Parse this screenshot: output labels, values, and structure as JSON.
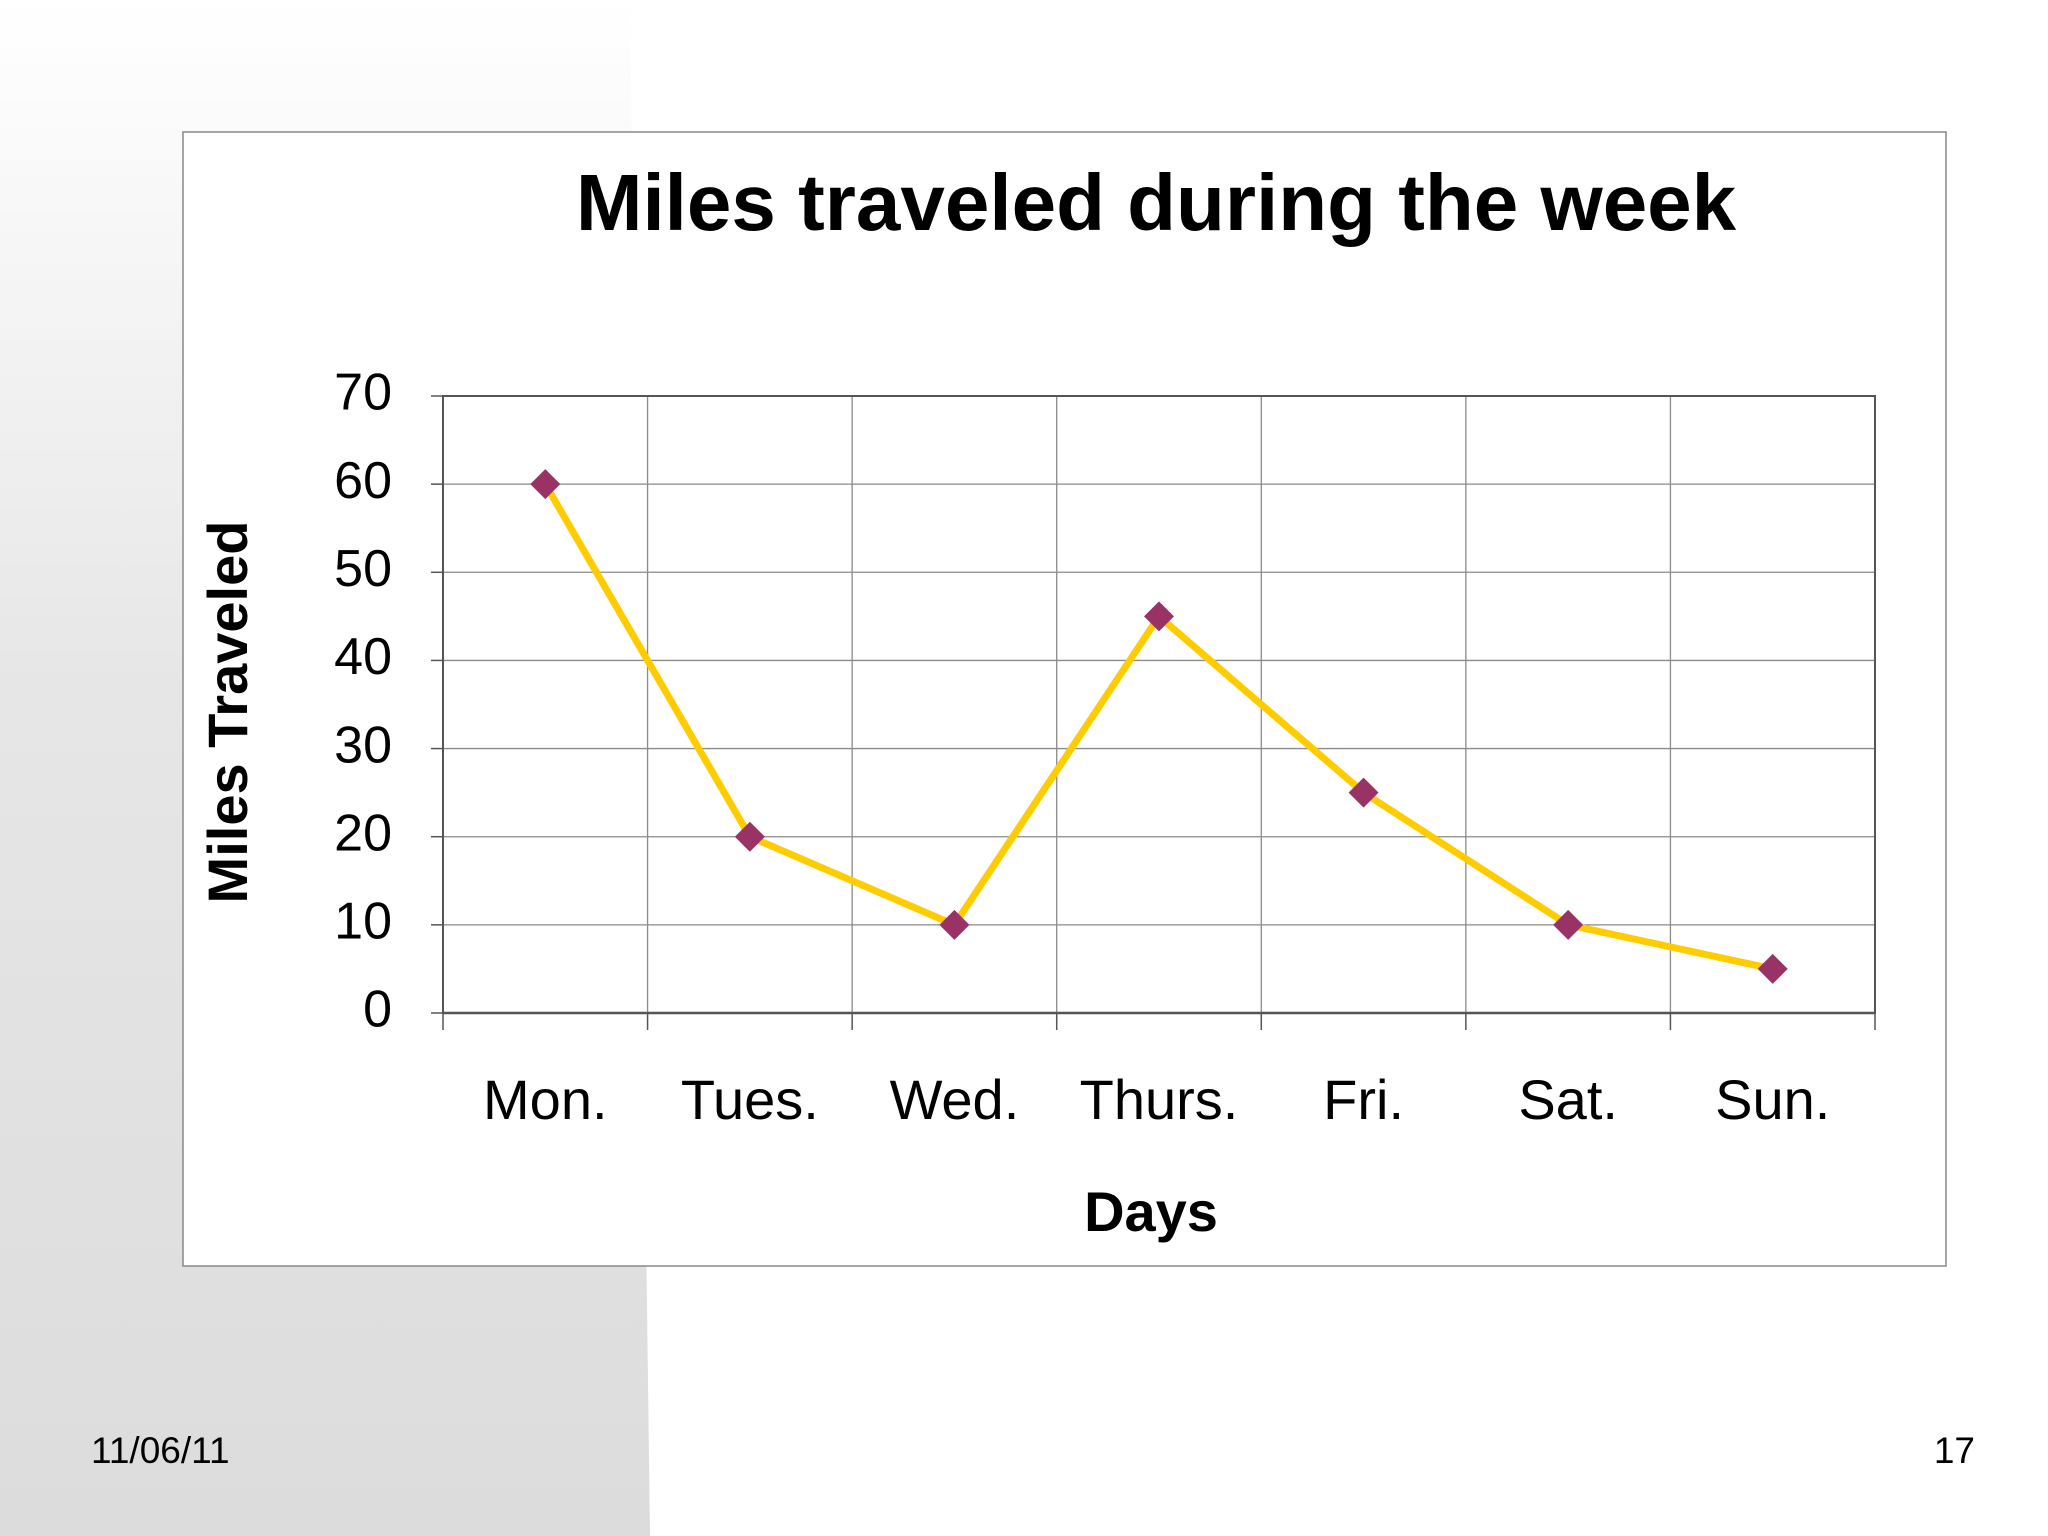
{
  "chart_data": {
    "type": "line",
    "title": "Miles traveled during the week",
    "x_label": "Days",
    "y_label": "Miles Traveled",
    "categories": [
      "Mon.",
      "Tues.",
      "Wed.",
      "Thurs.",
      "Fri.",
      "Sat.",
      "Sun."
    ],
    "values": [
      60,
      20,
      10,
      45,
      25,
      10,
      5
    ],
    "color": "#ffcc00",
    "marker_color": "#993366",
    "ylim": [
      0,
      70
    ],
    "yticks": [
      0,
      10,
      20,
      30,
      40,
      50,
      60,
      70
    ],
    "grid": true
  },
  "footer": {
    "date": "11/06/11",
    "page": "17"
  }
}
